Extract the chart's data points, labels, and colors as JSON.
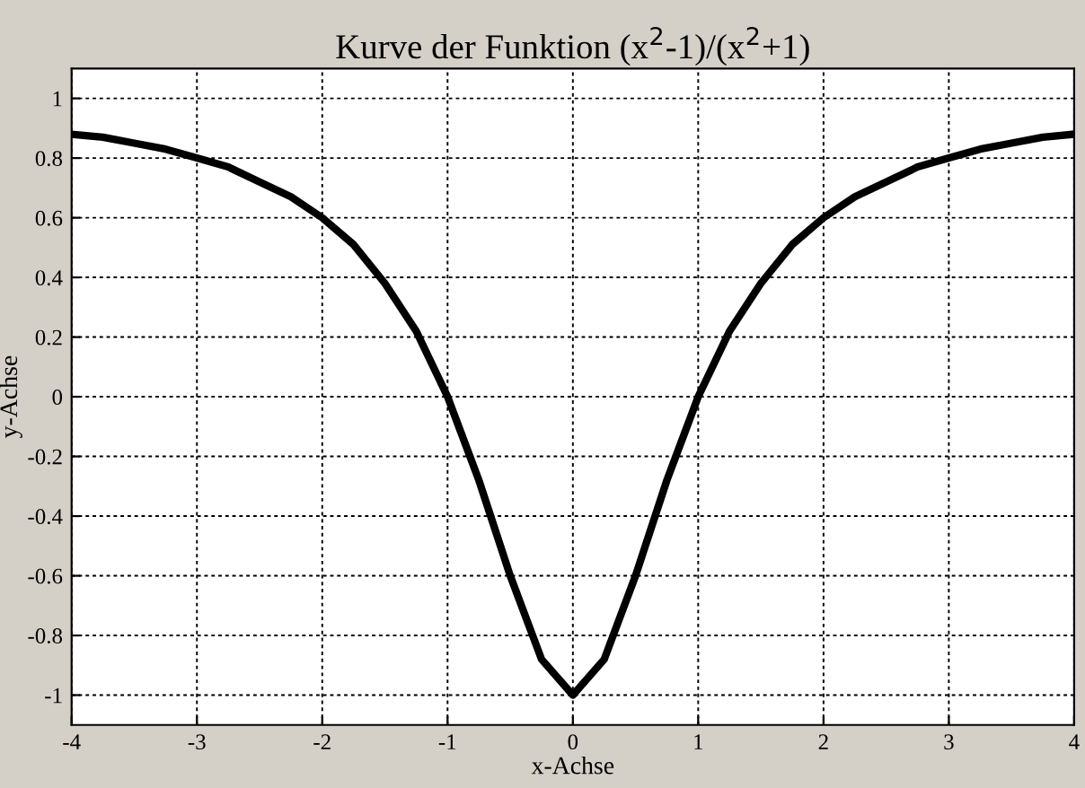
{
  "chart_data": {
    "type": "line",
    "title": "Kurve der Funktion (x$^{2}$-1)/(x$^{2}$+1)",
    "xlabel": "x-Achse",
    "ylabel": "y-Achse",
    "x": [
      -4,
      -3.75,
      -3.5,
      -3.25,
      -3,
      -2.75,
      -2.5,
      -2.25,
      -2,
      -1.75,
      -1.5,
      -1.25,
      -1,
      -0.75,
      -0.5,
      -0.25,
      0,
      0.25,
      0.5,
      0.75,
      1,
      1.25,
      1.5,
      1.75,
      2,
      2.25,
      2.5,
      2.75,
      3,
      3.25,
      3.5,
      3.75,
      4
    ],
    "series": [
      {
        "color": "#000000",
        "values": [
          0.88,
          0.87,
          0.85,
          0.83,
          0.8,
          0.77,
          0.72,
          0.67,
          0.6,
          0.51,
          0.38,
          0.22,
          0,
          -0.28,
          -0.6,
          -0.88,
          -1,
          -0.88,
          -0.6,
          -0.28,
          0,
          0.22,
          0.38,
          0.51,
          0.6,
          0.67,
          0.72,
          0.77,
          0.8,
          0.83,
          0.85,
          0.87,
          0.88
        ]
      }
    ],
    "xlim": [
      -4,
      4
    ],
    "xticks": [
      -4,
      -3,
      -2,
      -1,
      0,
      1,
      2,
      3,
      4
    ],
    "ylim": [
      -1.1,
      1.1
    ],
    "yticks": [
      -1,
      -0.8,
      -0.6,
      -0.4,
      -0.2,
      0,
      0.2,
      0.4,
      0.6,
      0.8,
      1
    ],
    "grid": true,
    "legend": false,
    "marker": "none",
    "line_style": "solid"
  }
}
